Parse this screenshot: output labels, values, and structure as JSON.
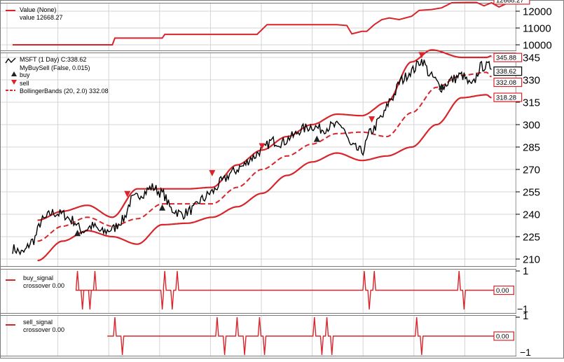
{
  "colors": {
    "red": "#d8252c",
    "black": "#000000",
    "grid": "#d4d4d4",
    "border": "#7a7a7a"
  },
  "chart_data": [
    {
      "type": "line",
      "panel": "value",
      "legend": [
        {
          "label": "Value (None)"
        },
        {
          "label": "value 12668.27"
        }
      ],
      "yticks": [
        10000,
        11000,
        12000
      ],
      "ylim": [
        9800,
        12750
      ],
      "last_value_label": "12668.27",
      "series": [
        {
          "name": "value",
          "color": "#d8252c",
          "x": [
            0,
            40,
            41,
            60,
            61,
            98,
            102,
            130,
            134,
            136,
            140,
            142,
            145,
            148,
            151,
            155,
            160,
            163,
            168,
            172,
            176,
            182,
            186,
            189,
            192,
            195,
            198,
            200,
            203
          ],
          "y": [
            10000,
            10000,
            10400,
            10400,
            10620,
            10620,
            11200,
            11200,
            11150,
            10650,
            10800,
            10800,
            11200,
            11500,
            11600,
            11500,
            11700,
            12050,
            12100,
            12200,
            12500,
            12520,
            12520,
            12320,
            12500,
            12250,
            12450,
            12700,
            12700
          ]
        }
      ]
    },
    {
      "type": "line",
      "panel": "price",
      "legend": [
        {
          "label": "MSFT (1 Day) C:338.62",
          "marker": "line-black"
        },
        {
          "label": "MyBuySell (False, 0.015)",
          "marker": "none"
        },
        {
          "label": "buy",
          "marker": "triangle-up"
        },
        {
          "label": "sell",
          "marker": "triangle-down"
        },
        {
          "label": "BollingerBands (20, 2.0) 332.08",
          "marker": "dashed-red"
        }
      ],
      "yticks": [
        210,
        225,
        240,
        255,
        270,
        285,
        300,
        315,
        330,
        345
      ],
      "ylim": [
        206,
        352
      ],
      "value_labels": [
        "345.88",
        "338.62",
        "332.08",
        "318.28"
      ],
      "anchors": {
        "close": [
          [
            0,
            217
          ],
          [
            4,
            214
          ],
          [
            8,
            222
          ],
          [
            12,
            236
          ],
          [
            16,
            241
          ],
          [
            20,
            240
          ],
          [
            24,
            236
          ],
          [
            28,
            229
          ],
          [
            32,
            232
          ],
          [
            36,
            228
          ],
          [
            40,
            230
          ],
          [
            44,
            236
          ],
          [
            48,
            250
          ],
          [
            52,
            254
          ],
          [
            56,
            258
          ],
          [
            60,
            254
          ],
          [
            64,
            243
          ],
          [
            68,
            240
          ],
          [
            72,
            243
          ],
          [
            76,
            250
          ],
          [
            80,
            255
          ],
          [
            84,
            262
          ],
          [
            88,
            268
          ],
          [
            92,
            272
          ],
          [
            96,
            278
          ],
          [
            100,
            283
          ],
          [
            104,
            289
          ],
          [
            108,
            288
          ],
          [
            112,
            292
          ],
          [
            116,
            297
          ],
          [
            120,
            299
          ],
          [
            124,
            297
          ],
          [
            128,
            299
          ],
          [
            132,
            299
          ],
          [
            136,
            285
          ],
          [
            140,
            282
          ],
          [
            144,
            296
          ],
          [
            148,
            305
          ],
          [
            152,
            318
          ],
          [
            156,
            330
          ],
          [
            160,
            336
          ],
          [
            164,
            343
          ],
          [
            168,
            332
          ],
          [
            172,
            325
          ],
          [
            176,
            330
          ],
          [
            180,
            333
          ],
          [
            184,
            326
          ],
          [
            188,
            339
          ],
          [
            192,
            339
          ]
        ],
        "mid": [
          [
            10,
            222
          ],
          [
            20,
            232
          ],
          [
            30,
            238
          ],
          [
            40,
            232
          ],
          [
            50,
            237
          ],
          [
            60,
            247
          ],
          [
            70,
            247
          ],
          [
            80,
            247
          ],
          [
            90,
            258
          ],
          [
            100,
            270
          ],
          [
            110,
            279
          ],
          [
            120,
            287
          ],
          [
            130,
            294
          ],
          [
            140,
            295
          ],
          [
            150,
            292
          ],
          [
            160,
            308
          ],
          [
            170,
            325
          ],
          [
            180,
            333
          ],
          [
            190,
            335
          ],
          [
            192,
            332
          ]
        ],
        "upper": [
          [
            10,
            236
          ],
          [
            20,
            242
          ],
          [
            30,
            246
          ],
          [
            40,
            238
          ],
          [
            50,
            257
          ],
          [
            60,
            257
          ],
          [
            70,
            257
          ],
          [
            80,
            258
          ],
          [
            90,
            273
          ],
          [
            100,
            283
          ],
          [
            110,
            292
          ],
          [
            120,
            300
          ],
          [
            130,
            307
          ],
          [
            140,
            306
          ],
          [
            150,
            315
          ],
          [
            160,
            342
          ],
          [
            168,
            350
          ],
          [
            180,
            345
          ],
          [
            190,
            345
          ],
          [
            192,
            346
          ]
        ],
        "lower": [
          [
            10,
            209
          ],
          [
            20,
            222
          ],
          [
            30,
            229
          ],
          [
            40,
            225
          ],
          [
            50,
            220
          ],
          [
            60,
            233
          ],
          [
            70,
            234
          ],
          [
            80,
            238
          ],
          [
            90,
            245
          ],
          [
            100,
            254
          ],
          [
            110,
            266
          ],
          [
            120,
            275
          ],
          [
            130,
            281
          ],
          [
            140,
            276
          ],
          [
            150,
            279
          ],
          [
            160,
            285
          ],
          [
            170,
            300
          ],
          [
            180,
            318
          ],
          [
            190,
            320
          ],
          [
            192,
            318
          ]
        ]
      },
      "buy_signals": [
        {
          "x": 26,
          "y": 232
        },
        {
          "x": 60,
          "y": 249
        },
        {
          "x": 122,
          "y": 295
        },
        {
          "x": 172,
          "y": 330
        }
      ],
      "sell_signals": [
        {
          "x": 46,
          "y": 249
        },
        {
          "x": 80,
          "y": 263
        },
        {
          "x": 100,
          "y": 281
        },
        {
          "x": 144,
          "y": 299
        },
        {
          "x": 164,
          "y": 342
        }
      ]
    },
    {
      "type": "line",
      "panel": "buy_signal",
      "legend": [
        {
          "label": "buy_signal"
        },
        {
          "label": "crossover 0.00"
        }
      ],
      "yticks": [
        1
      ],
      "ylim": [
        -1,
        1
      ],
      "bottom_label": "−1",
      "last_value_label": "0.00",
      "spikes": [
        {
          "x": 26,
          "dir": 1
        },
        {
          "x": 28,
          "dir": -1
        },
        {
          "x": 31,
          "dir": -1
        },
        {
          "x": 33,
          "dir": 1
        },
        {
          "x": 60,
          "dir": -1
        },
        {
          "x": 61,
          "dir": 1
        },
        {
          "x": 64,
          "dir": -1
        },
        {
          "x": 66,
          "dir": 1
        },
        {
          "x": 141,
          "dir": 1
        },
        {
          "x": 143,
          "dir": -1
        },
        {
          "x": 145,
          "dir": 1
        },
        {
          "x": 179,
          "dir": 1
        },
        {
          "x": 181,
          "dir": -1
        }
      ]
    },
    {
      "type": "line",
      "panel": "sell_signal",
      "legend": [
        {
          "label": "sell_signal"
        },
        {
          "label": "crossover 0.00"
        }
      ],
      "yticks": [
        1,
        -1
      ],
      "ylim": [
        -1,
        1
      ],
      "last_value_label": "0.00",
      "spikes": [
        {
          "x": 41,
          "dir": 1
        },
        {
          "x": 44,
          "dir": -1
        },
        {
          "x": 82,
          "dir": 1
        },
        {
          "x": 85,
          "dir": -1
        },
        {
          "x": 90,
          "dir": 1
        },
        {
          "x": 93,
          "dir": -1
        },
        {
          "x": 99,
          "dir": 1
        },
        {
          "x": 101,
          "dir": -1
        },
        {
          "x": 121,
          "dir": 1
        },
        {
          "x": 124,
          "dir": -1
        },
        {
          "x": 126,
          "dir": 1
        },
        {
          "x": 128,
          "dir": -1
        },
        {
          "x": 162,
          "dir": 1
        },
        {
          "x": 164,
          "dir": -1
        }
      ]
    }
  ]
}
